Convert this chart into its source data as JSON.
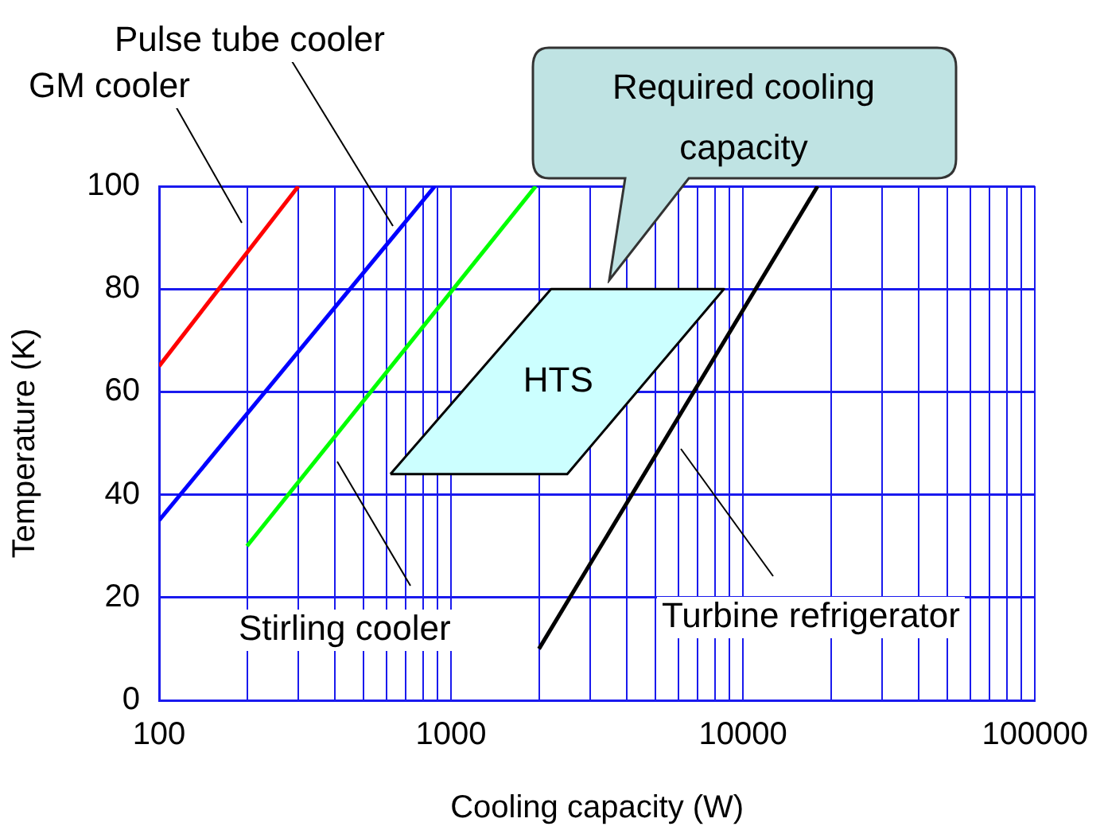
{
  "chart_data": {
    "type": "line",
    "xlabel": "Cooling capacity (W)",
    "ylabel": "Temperature (K)",
    "log": "x",
    "xlim": [
      100,
      100000
    ],
    "ylim": [
      0,
      100
    ],
    "xticks": [
      100,
      {
        "value": 200,
        "label": null
      },
      {
        "value": 300,
        "label": null
      },
      {
        "value": 400,
        "label": null
      },
      {
        "value": 500,
        "label": null
      },
      {
        "value": 600,
        "label": null
      },
      {
        "value": 700,
        "label": null
      },
      {
        "value": 800,
        "label": null
      },
      {
        "value": 900,
        "label": null
      },
      1000,
      {
        "value": 2000,
        "label": null
      },
      {
        "value": 3000,
        "label": null
      },
      {
        "value": 4000,
        "label": null
      },
      {
        "value": 5000,
        "label": null
      },
      {
        "value": 6000,
        "label": null
      },
      {
        "value": 7000,
        "label": null
      },
      {
        "value": 8000,
        "label": null
      },
      {
        "value": 9000,
        "label": null
      },
      10000,
      {
        "value": 20000,
        "label": null
      },
      {
        "value": 30000,
        "label": null
      },
      {
        "value": 40000,
        "label": null
      },
      {
        "value": 50000,
        "label": null
      },
      {
        "value": 60000,
        "label": null
      },
      {
        "value": 70000,
        "label": null
      },
      {
        "value": 80000,
        "label": null
      },
      {
        "value": 90000,
        "label": null
      },
      100000
    ],
    "yticks": [
      0,
      20,
      40,
      60,
      80,
      100
    ],
    "grid": true,
    "legend": false,
    "marker": "none",
    "series": [
      {
        "name": "GM cooler",
        "color": "#ff0000",
        "x": [
          100,
          300
        ],
        "values": [
          65,
          100
        ]
      },
      {
        "name": "Pulse tube cooler",
        "color": "#0000ff",
        "x": [
          100,
          880
        ],
        "values": [
          35,
          100
        ]
      },
      {
        "name": "Stirling cooler",
        "color": "#00ff00",
        "x": [
          200,
          1950
        ],
        "values": [
          30,
          100
        ]
      },
      {
        "name": "Turbine refrigerator",
        "color": "#000000",
        "x": [
          2000,
          18000
        ],
        "values": [
          10,
          100
        ]
      },
      {
        "name": "HTS",
        "type": "area",
        "color": "#ccffff",
        "x": [
          620,
          2500,
          8600,
          2200,
          620
        ],
        "values": [
          44,
          44,
          80,
          80,
          44
        ]
      }
    ],
    "annotations": [
      "Required cooling capacity"
    ]
  }
}
